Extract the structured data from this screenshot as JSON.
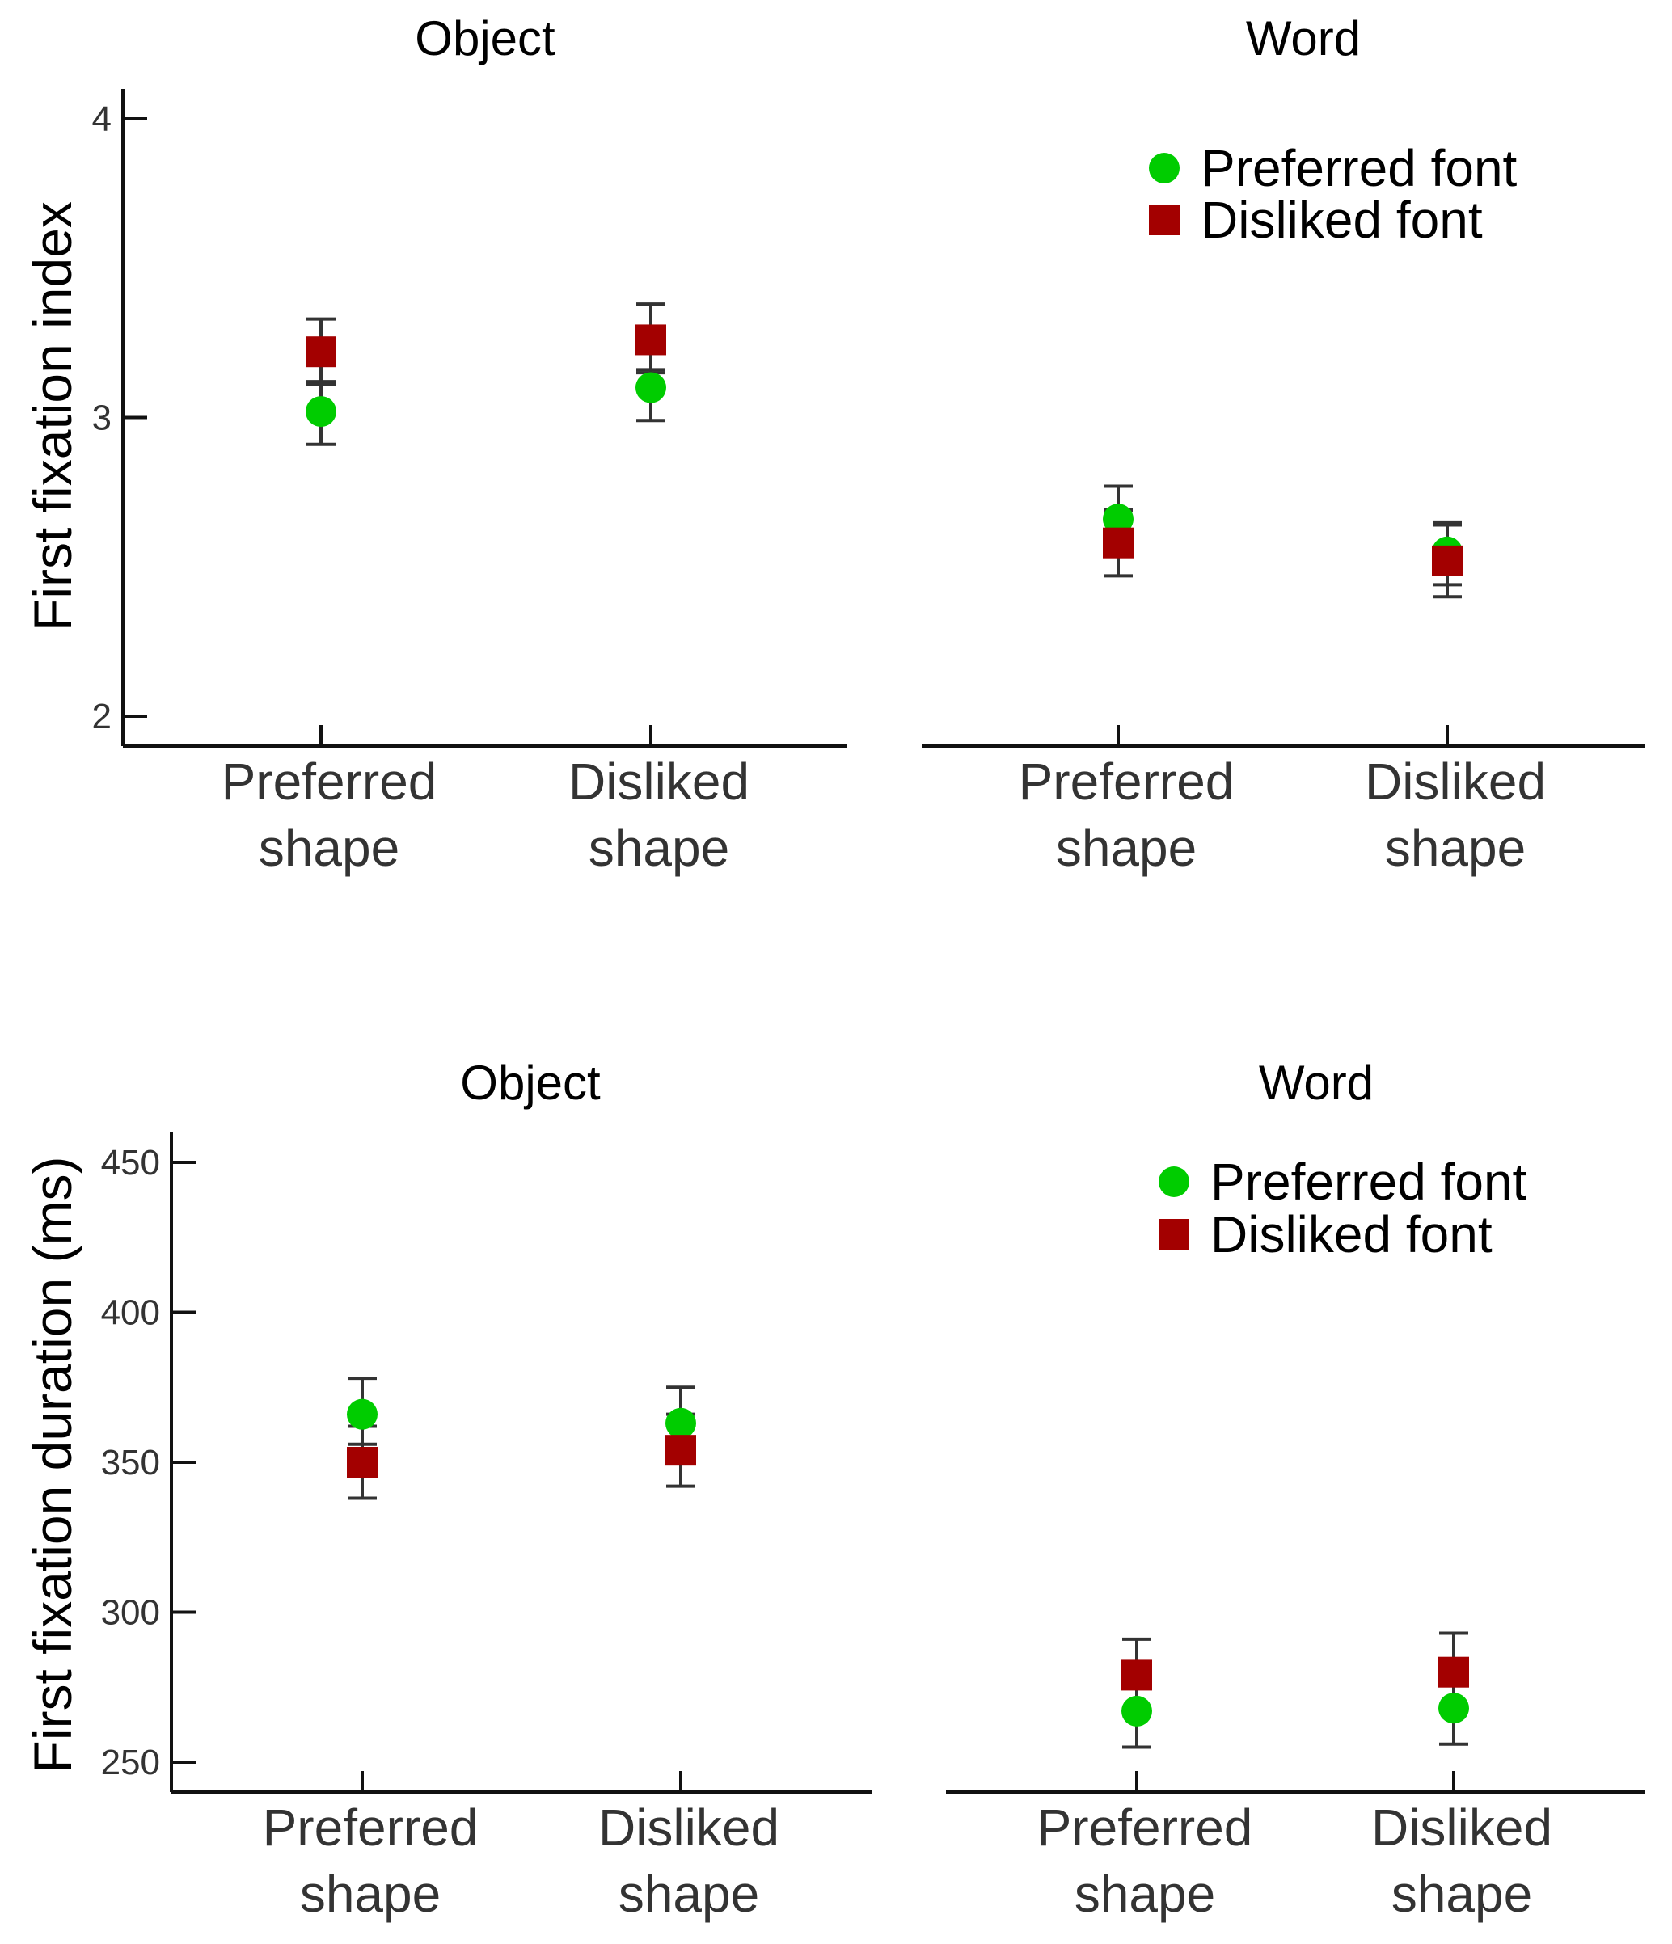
{
  "chart_data": [
    {
      "type": "scatter",
      "title": "Object",
      "ylabel": "First fixation index",
      "categories": [
        "Preferred\nshape",
        "Disliked\nshape"
      ],
      "ylim": [
        1.9,
        4.1
      ],
      "yticks": [
        2,
        3,
        4
      ],
      "series": [
        {
          "name": "Preferred font",
          "marker": "circle",
          "color": "#00cc00",
          "values": [
            3.02,
            3.1
          ],
          "err_low": [
            2.91,
            2.99
          ],
          "err_high": [
            3.12,
            3.16
          ]
        },
        {
          "name": "Disliked font",
          "marker": "square",
          "color": "#a30000",
          "values": [
            3.22,
            3.26
          ],
          "err_low": [
            3.11,
            3.15
          ],
          "err_high": [
            3.33,
            3.38
          ]
        }
      ],
      "legend": null
    },
    {
      "type": "scatter",
      "title": "Word",
      "ylabel": "",
      "categories": [
        "Preferred\nshape",
        "Disliked\nshape"
      ],
      "ylim": [
        1.9,
        4.1
      ],
      "yticks": [],
      "series": [
        {
          "name": "Preferred font",
          "marker": "circle",
          "color": "#00cc00",
          "values": [
            2.66,
            2.55
          ],
          "err_low": [
            2.56,
            2.44
          ],
          "err_high": [
            2.77,
            2.65
          ]
        },
        {
          "name": "Disliked font",
          "marker": "square",
          "color": "#a30000",
          "values": [
            2.58,
            2.52
          ],
          "err_low": [
            2.47,
            2.4
          ],
          "err_high": [
            2.69,
            2.64
          ]
        }
      ],
      "legend": {
        "placement": "top-right",
        "entries": [
          "Preferred font",
          "Disliked font"
        ]
      }
    },
    {
      "type": "scatter",
      "title": "Object",
      "ylabel": "First fixation duration (ms)",
      "categories": [
        "Preferred\nshape",
        "Disliked\nshape"
      ],
      "ylim": [
        240,
        460
      ],
      "yticks": [
        250,
        300,
        350,
        400,
        450
      ],
      "series": [
        {
          "name": "Preferred font",
          "marker": "circle",
          "color": "#00cc00",
          "values": [
            366,
            363
          ],
          "err_low": [
            356,
            353
          ],
          "err_high": [
            378,
            375
          ]
        },
        {
          "name": "Disliked font",
          "marker": "square",
          "color": "#a30000",
          "values": [
            350,
            354
          ],
          "err_low": [
            338,
            342
          ],
          "err_high": [
            362,
            366
          ]
        }
      ],
      "legend": null
    },
    {
      "type": "scatter",
      "title": "Word",
      "ylabel": "",
      "categories": [
        "Preferred\nshape",
        "Disliked\nshape"
      ],
      "ylim": [
        240,
        460
      ],
      "yticks": [],
      "series": [
        {
          "name": "Preferred font",
          "marker": "circle",
          "color": "#00cc00",
          "values": [
            267,
            268
          ],
          "err_low": [
            255,
            256
          ],
          "err_high": [
            279,
            280
          ]
        },
        {
          "name": "Disliked font",
          "marker": "square",
          "color": "#a30000",
          "values": [
            279,
            280
          ],
          "err_low": [
            267,
            268
          ],
          "err_high": [
            291,
            293
          ]
        }
      ],
      "legend": {
        "placement": "top-right",
        "entries": [
          "Preferred font",
          "Disliked font"
        ]
      }
    }
  ]
}
